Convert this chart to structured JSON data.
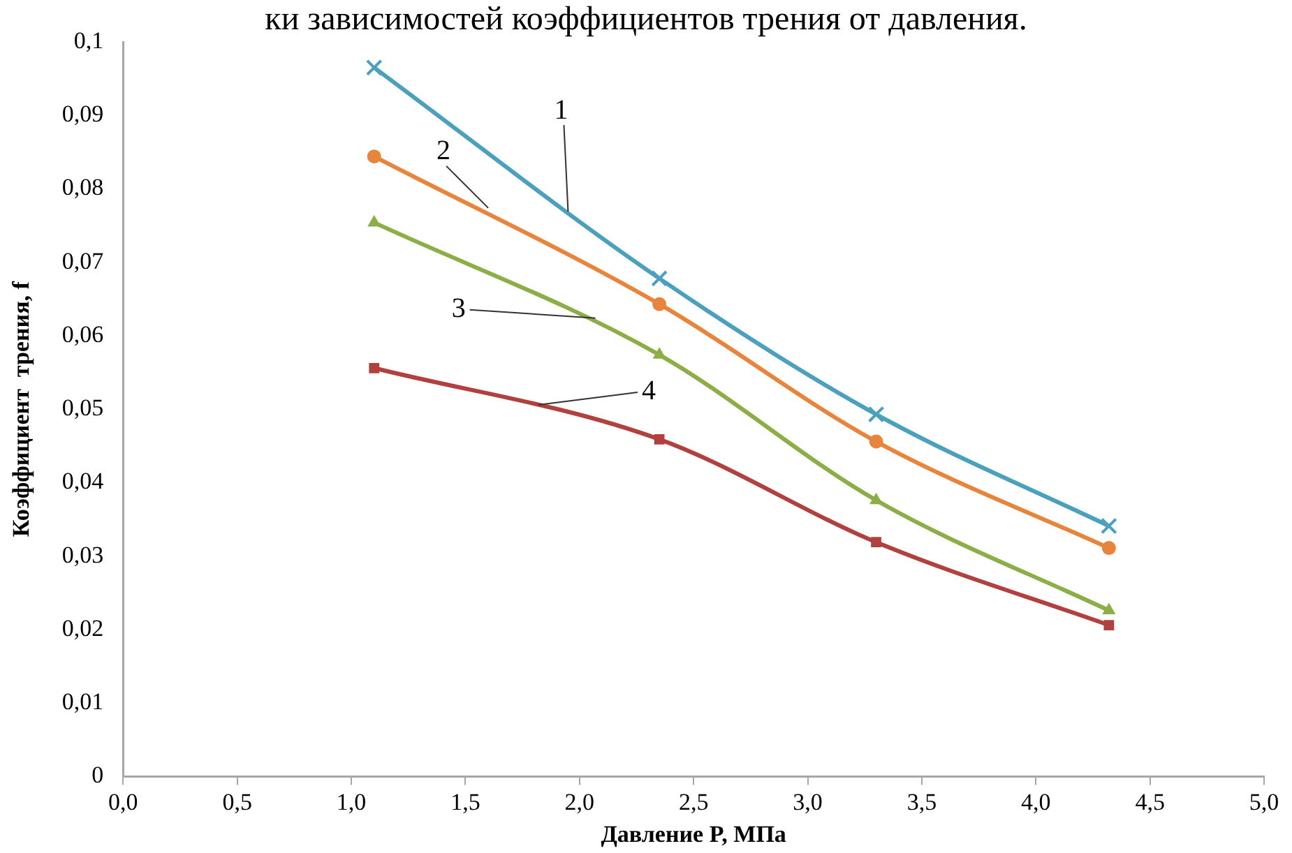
{
  "chart_data": {
    "type": "line",
    "title": "ки зависимостей коэффициентов трения от давления.",
    "xlabel": "Давление P, МПа",
    "ylabel": "Коэффициент  трения, f",
    "x": [
      1.1,
      2.35,
      3.3,
      4.32
    ],
    "series": [
      {
        "color": "#4aa0bd",
        "marker": "cross",
        "values": [
          0.0965,
          0.0678,
          0.0493,
          0.0341
        ]
      },
      {
        "color": "#e8853d",
        "marker": "circle",
        "values": [
          0.0844,
          0.0643,
          0.0456,
          0.0311
        ]
      },
      {
        "color": "#8bae46",
        "marker": "triangle",
        "values": [
          0.0754,
          0.0574,
          0.0376,
          0.0226
        ]
      },
      {
        "color": "#b0413e",
        "marker": "square",
        "values": [
          0.0556,
          0.0459,
          0.0319,
          0.0206
        ]
      }
    ],
    "xlim": [
      0,
      5
    ],
    "xticks": [
      {
        "value": 0,
        "label": "0,0"
      },
      {
        "value": 0.5,
        "label": "0,5"
      },
      {
        "value": 1,
        "label": "1,0"
      },
      {
        "value": 1.5,
        "label": "1,5"
      },
      {
        "value": 2,
        "label": "2,0"
      },
      {
        "value": 2.5,
        "label": "2,5"
      },
      {
        "value": 3,
        "label": "3,0"
      },
      {
        "value": 3.5,
        "label": "3,5"
      },
      {
        "value": 4,
        "label": "4,0"
      },
      {
        "value": 4.5,
        "label": "4,5"
      },
      {
        "value": 5,
        "label": "5,0"
      }
    ],
    "ylim": [
      0,
      0.1
    ],
    "yticks": [
      0,
      {
        "value": 0.01,
        "label": "0,01"
      },
      {
        "value": 0.02,
        "label": "0,02"
      },
      {
        "value": 0.03,
        "label": "0,03"
      },
      {
        "value": 0.04,
        "label": "0,04"
      },
      {
        "value": 0.05,
        "label": "0,05"
      },
      {
        "value": 0.06,
        "label": "0,06"
      },
      {
        "value": 0.07,
        "label": "0,07"
      },
      {
        "value": 0.08,
        "label": "0,08"
      },
      {
        "value": 0.09,
        "label": "0,09"
      },
      {
        "value": 0.1,
        "label": "0,1"
      }
    ],
    "grid": false,
    "legend": false,
    "annotations": [
      {
        "text": "1",
        "x": 1.95,
        "y": 0.0769
      },
      {
        "text": "2",
        "x": 1.6,
        "y": 0.0774
      },
      {
        "text": "3",
        "x": 2.07,
        "y": 0.0624
      },
      {
        "text": "4",
        "x": 1.82,
        "y": 0.0506
      }
    ]
  }
}
